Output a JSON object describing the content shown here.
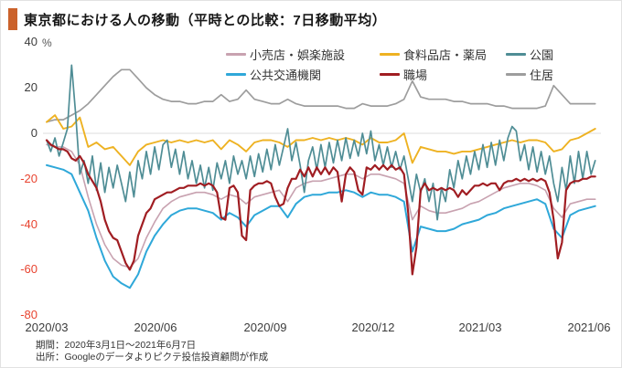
{
  "title": "東京都における人の移動（平時との比較：7日移動平均）",
  "accent_color": "#cb622b",
  "footer": {
    "period": "期間：2020年3月1日～2021年6月7日",
    "source": "出所：Googleのデータよりピクテ投信投資顧問が作成"
  },
  "chart_data": {
    "type": "line",
    "title": "東京都における人の移動（平時との比較：7日移動平均）",
    "unit": "%",
    "x_start_date": "2020-03-01",
    "x_end_date": "2021-06-07",
    "total_days": 463,
    "ylim": [
      -80,
      40
    ],
    "grid": "zero-line-only",
    "legend_position": "top-inside-two-rows",
    "x_tick_labels": [
      "2020/03",
      "2020/06",
      "2020/09",
      "2020/12",
      "2021/03",
      "2021/06"
    ],
    "x_tick_days": [
      0,
      92,
      184,
      275,
      365,
      457
    ],
    "y_tick_labels": [
      "40",
      "20",
      "0",
      "-20",
      "-40",
      "-60",
      "-80"
    ],
    "y_ticks": [
      40,
      20,
      0,
      -20,
      -40,
      -60,
      -80
    ],
    "draw_order": [
      0,
      3,
      5,
      1,
      2,
      4
    ],
    "series": [
      {
        "name": "小売店・娯楽施設",
        "color": "#c8a2b0",
        "step_days": 7,
        "values": [
          -5,
          -6,
          -6,
          -8,
          -14,
          -28,
          -40,
          -49,
          -55,
          -58,
          -59,
          -55,
          -46,
          -39,
          -33,
          -30,
          -28,
          -27,
          -26,
          -26,
          -27,
          -29,
          -27,
          -28,
          -31,
          -28,
          -27,
          -26,
          -25,
          -30,
          -24,
          -22,
          -21,
          -21,
          -20,
          -19,
          -18,
          -18,
          -20,
          -18,
          -18,
          -19,
          -20,
          -22,
          -38,
          -32,
          -34,
          -35,
          -35,
          -34,
          -33,
          -31,
          -30,
          -28,
          -26,
          -24,
          -23,
          -22,
          -22,
          -23,
          -25,
          -33,
          -37,
          -31,
          -30,
          -29,
          -29
        ]
      },
      {
        "name": "食料品店・薬局",
        "color": "#eeb222",
        "step_days": 7,
        "values": [
          5,
          8,
          2,
          3,
          7,
          -6,
          -4,
          -7,
          -6,
          -10,
          -14,
          -8,
          -5,
          -4,
          -3,
          -4,
          -3,
          -4,
          -3,
          -4,
          -3,
          -7,
          -3,
          -5,
          -8,
          -4,
          -3,
          -3,
          -4,
          -6,
          -3,
          -3,
          -2,
          -3,
          -2,
          -3,
          -2,
          -3,
          -5,
          -2,
          -4,
          -4,
          -3,
          0,
          -13,
          -6,
          -7,
          -8,
          -8,
          -9,
          -8,
          -8,
          -7,
          -6,
          -5,
          -4,
          -3,
          -4,
          -3,
          -3,
          -4,
          -8,
          -7,
          -3,
          -2,
          0,
          2
        ]
      },
      {
        "name": "公園",
        "color": "#4f8d95",
        "step_days": 3.5,
        "values": [
          -3,
          -8,
          -2,
          -10,
          -4,
          2,
          30,
          8,
          -18,
          -12,
          -22,
          -10,
          -25,
          -13,
          -26,
          -15,
          -24,
          -14,
          -22,
          -30,
          -17,
          -28,
          -12,
          -20,
          -8,
          -18,
          -6,
          -16,
          -5,
          -3,
          -15,
          -7,
          -18,
          -8,
          -20,
          -12,
          -22,
          -14,
          -24,
          -15,
          -25,
          -13,
          -20,
          -12,
          -22,
          -10,
          -18,
          -12,
          -20,
          -10,
          -19,
          -9,
          -17,
          -7,
          -16,
          -5,
          -14,
          -6,
          2,
          -12,
          -4,
          -14,
          -26,
          -12,
          -6,
          -16,
          -5,
          -15,
          -4,
          -13,
          -3,
          -12,
          -2,
          -11,
          -3,
          -10,
          0,
          -9,
          1,
          -12,
          -5,
          -14,
          -6,
          -15,
          -8,
          -16,
          -10,
          -20,
          -30,
          -18,
          -26,
          -20,
          -30,
          -22,
          -38,
          -24,
          -30,
          -16,
          -24,
          -12,
          -20,
          -10,
          -18,
          -8,
          -16,
          -5,
          -15,
          -4,
          -14,
          -3,
          -12,
          -2,
          3,
          1,
          -12,
          -5,
          -16,
          -6,
          -17,
          -8,
          -18,
          -10,
          -22,
          -30,
          -15,
          -25,
          -10,
          -22,
          -8,
          -20,
          -8,
          -18,
          -12
        ]
      },
      {
        "name": "公共交通機関",
        "color": "#2fa8d9",
        "step_days": 7,
        "values": [
          -14,
          -15,
          -16,
          -18,
          -26,
          -34,
          -46,
          -56,
          -63,
          -66,
          -68,
          -62,
          -52,
          -45,
          -40,
          -36,
          -34,
          -33,
          -33,
          -34,
          -35,
          -38,
          -35,
          -37,
          -41,
          -36,
          -34,
          -32,
          -32,
          -37,
          -31,
          -28,
          -27,
          -27,
          -26,
          -26,
          -25,
          -26,
          -28,
          -26,
          -27,
          -27,
          -28,
          -30,
          -52,
          -41,
          -42,
          -43,
          -43,
          -42,
          -40,
          -39,
          -38,
          -36,
          -35,
          -33,
          -32,
          -31,
          -30,
          -29,
          -31,
          -42,
          -46,
          -36,
          -34,
          -33,
          -32
        ]
      },
      {
        "name": "職場",
        "color": "#a01d22",
        "step_days": 3.5,
        "values": [
          -3,
          -5,
          -6,
          -7,
          -7,
          -8,
          -11,
          -12,
          -10,
          -13,
          -18,
          -21,
          -24,
          -30,
          -38,
          -43,
          -46,
          -47,
          -52,
          -57,
          -60,
          -56,
          -45,
          -40,
          -35,
          -33,
          -29,
          -28,
          -27,
          -26,
          -26,
          -25,
          -24,
          -24,
          -23,
          -23,
          -23,
          -22,
          -23,
          -22,
          -23,
          -26,
          -37,
          -38,
          -24,
          -23,
          -26,
          -45,
          -47,
          -25,
          -23,
          -22,
          -22,
          -21,
          -22,
          -28,
          -32,
          -31,
          -24,
          -20,
          -20,
          -16,
          -19,
          -15,
          -19,
          -15,
          -18,
          -15,
          -18,
          -15,
          -17,
          -30,
          -18,
          -15,
          -17,
          -25,
          -27,
          -15,
          -16,
          -14,
          -16,
          -14,
          -16,
          -14,
          -16,
          -15,
          -18,
          -35,
          -62,
          -50,
          -25,
          -22,
          -25,
          -24,
          -25,
          -24,
          -25,
          -24,
          -25,
          -28,
          -25,
          -27,
          -25,
          -23,
          -23,
          -22,
          -23,
          -22,
          -22,
          -25,
          -22,
          -21,
          -21,
          -20,
          -21,
          -20,
          -21,
          -20,
          -21,
          -20,
          -21,
          -26,
          -38,
          -55,
          -48,
          -25,
          -22,
          -21,
          -21,
          -20,
          -20,
          -19,
          -19
        ]
      },
      {
        "name": "住居",
        "color": "#9d9d9d",
        "step_days": 7,
        "values": [
          5,
          6,
          6,
          8,
          10,
          13,
          17,
          21,
          25,
          28,
          28,
          24,
          20,
          17,
          15,
          14,
          14,
          13,
          13,
          14,
          14,
          17,
          14,
          15,
          19,
          15,
          14,
          13,
          13,
          15,
          13,
          12,
          12,
          12,
          12,
          12,
          11,
          11,
          13,
          12,
          12,
          12,
          13,
          15,
          23,
          16,
          15,
          15,
          15,
          14,
          14,
          13,
          13,
          13,
          12,
          12,
          11,
          11,
          11,
          11,
          12,
          21,
          17,
          13,
          13,
          13,
          13
        ]
      }
    ]
  }
}
